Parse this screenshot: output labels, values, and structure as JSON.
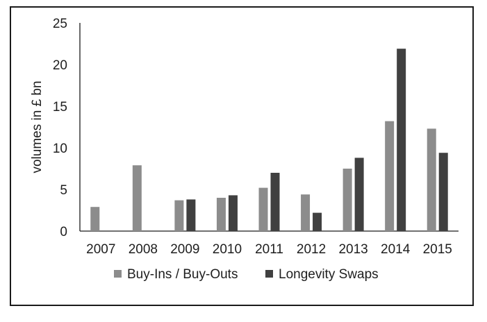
{
  "chart_data": {
    "type": "bar",
    "title": "",
    "xlabel": "",
    "ylabel": "volumes in £ bn",
    "ylim": [
      0,
      25
    ],
    "yticks": [
      0,
      5,
      10,
      15,
      20,
      25
    ],
    "grid": false,
    "legend_position": "bottom",
    "categories": [
      "2007",
      "2008",
      "2009",
      "2010",
      "2011",
      "2012",
      "2013",
      "2014",
      "2015"
    ],
    "series": [
      {
        "name": "Buy-Ins / Buy-Outs",
        "color": "#8c8c8c",
        "values": [
          2.9,
          7.9,
          3.7,
          4.0,
          5.2,
          4.4,
          7.5,
          13.2,
          12.3
        ]
      },
      {
        "name": "Longevity Swaps",
        "color": "#404040",
        "values": [
          0,
          0,
          3.8,
          4.3,
          7.0,
          2.2,
          8.8,
          21.9,
          9.4
        ]
      }
    ]
  }
}
